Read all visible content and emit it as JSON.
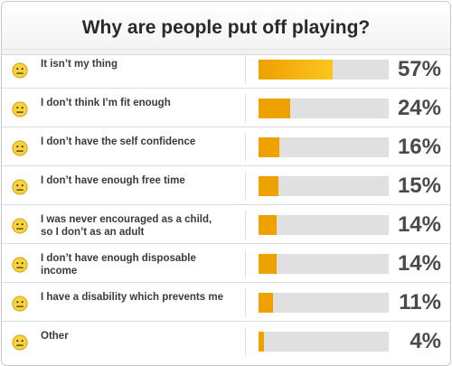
{
  "chart_data": {
    "type": "bar",
    "title": "Why are people put off playing?",
    "categories": [
      "It isn’t my thing",
      "I don’t think I’m fit enough",
      "I don’t have the self confidence",
      "I don’t have enough free time",
      "I was never encouraged as a child,\nso I don’t as an adult",
      "I don’t have enough disposable income",
      "I have a disability which prevents me",
      "Other"
    ],
    "values": [
      57,
      24,
      16,
      15,
      14,
      14,
      11,
      4
    ],
    "value_labels": [
      "57%",
      "24%",
      "16%",
      "15%",
      "14%",
      "14%",
      "11%",
      "4%"
    ],
    "xlim": [
      0,
      100
    ],
    "unit": "%",
    "icon": "neutral-face-icon",
    "colors": {
      "bar_start": "#eda100",
      "bar_end": "#fcc51e",
      "bar_main": "#eea200",
      "track": "#e0e0e0",
      "emoji_face": "#fbd23a",
      "emoji_outline": "#c79b10"
    }
  }
}
